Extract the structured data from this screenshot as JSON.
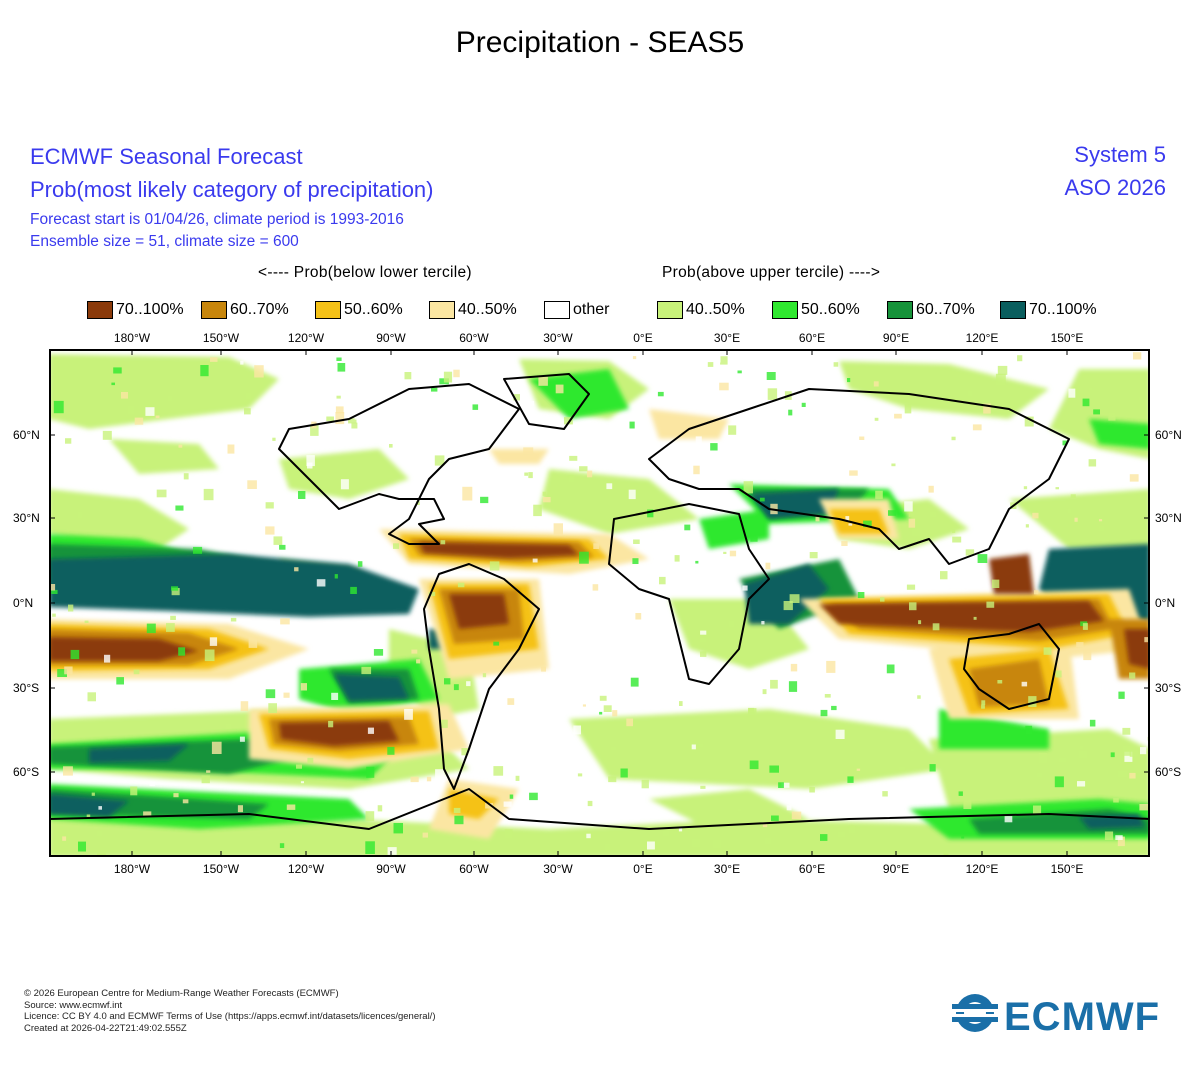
{
  "page_title": "Precipitation - SEAS5",
  "forecast": {
    "title": "ECMWF Seasonal Forecast",
    "subtitle": "Prob(most likely category of precipitation)",
    "info_line1": "Forecast start is 01/04/26, climate period is 1993-2016",
    "info_line2": "Ensemble size = 51, climate size = 600",
    "system": "System 5",
    "season": "ASO 2026"
  },
  "legend": {
    "below_label": "<---- Prob(below lower tercile)",
    "above_label": "Prob(above upper tercile) ---->",
    "items": [
      {
        "label": "70..100%",
        "color": "#8b3a0a"
      },
      {
        "label": "60..70%",
        "color": "#c8860c"
      },
      {
        "label": "50..60%",
        "color": "#f5c218"
      },
      {
        "label": "40..50%",
        "color": "#fbe6a2"
      },
      {
        "label": "other",
        "color": "#ffffff"
      },
      {
        "label": "40..50%",
        "color": "#c8f27a"
      },
      {
        "label": "50..60%",
        "color": "#2fe82f"
      },
      {
        "label": "60..70%",
        "color": "#16933a"
      },
      {
        "label": "70..100%",
        "color": "#0a5e5e"
      }
    ]
  },
  "map": {
    "lon_labels": [
      "180°W",
      "150°W",
      "120°W",
      "90°W",
      "60°W",
      "30°W",
      "0°E",
      "30°E",
      "60°E",
      "90°E",
      "120°E",
      "150°E"
    ],
    "lat_labels": [
      "60°N",
      "30°N",
      "0°N",
      "30°S",
      "60°S"
    ]
  },
  "footer": {
    "line1": "© 2026 European Centre for Medium-Range Weather Forecasts (ECMWF)",
    "line2": "Source: www.ecmwf.int",
    "line3": "Licence: CC BY 4.0 and ECMWF Terms of Use (https://apps.ecmwf.int/datasets/licences/general/)",
    "line4": "Created at 2026-04-22T21:49:02.555Z"
  },
  "logo_text": "ECMWF"
}
